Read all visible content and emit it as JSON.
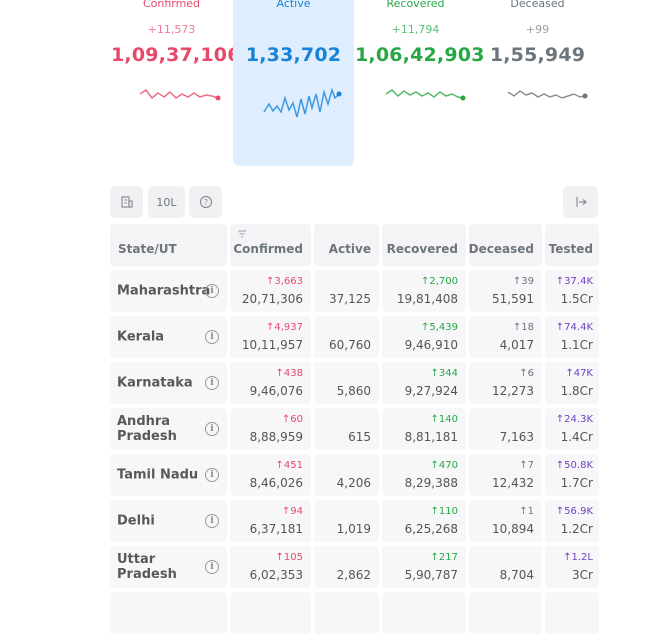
{
  "colors": {
    "confirmed": "#e8496a",
    "active": "#1683d8",
    "recovered": "#27a744",
    "deceased": "#6c757d",
    "tested": "#6f42c1"
  },
  "stats": {
    "confirmed": {
      "label": "Confirmed",
      "delta": "+11,573",
      "total": "1,09,37,106"
    },
    "active": {
      "label": "Active",
      "delta": "",
      "total": "1,33,702"
    },
    "recovered": {
      "label": "Recovered",
      "delta": "+11,794",
      "total": "1,06,42,903"
    },
    "deceased": {
      "label": "Deceased",
      "delta": "+99",
      "total": "1,55,949"
    }
  },
  "toolbar": {
    "building_icon": "building-icon",
    "per_lakh_label": "10L",
    "help_icon": "help-circle-icon",
    "expand_icon": "arrow-right-bar-icon"
  },
  "table": {
    "headers": {
      "state": "State/UT",
      "confirmed": "Confirmed",
      "active": "Active",
      "recovered": "Recovered",
      "deceased": "Deceased",
      "tested": "Tested"
    },
    "rows": [
      {
        "state": "Maharashtra",
        "c_delta": "↑3,663",
        "c": "20,71,306",
        "active": "37,125",
        "r_delta": "↑2,700",
        "r": "19,81,408",
        "d_delta": "↑39",
        "d": "51,591",
        "t_delta": "↑37.4K",
        "t": "1.5Cr"
      },
      {
        "state": "Kerala",
        "c_delta": "↑4,937",
        "c": "10,11,957",
        "active": "60,760",
        "r_delta": "↑5,439",
        "r": "9,46,910",
        "d_delta": "↑18",
        "d": "4,017",
        "t_delta": "↑74.4K",
        "t": "1.1Cr"
      },
      {
        "state": "Karnataka",
        "c_delta": "↑438",
        "c": "9,46,076",
        "active": "5,860",
        "r_delta": "↑344",
        "r": "9,27,924",
        "d_delta": "↑6",
        "d": "12,273",
        "t_delta": "↑47K",
        "t": "1.8Cr"
      },
      {
        "state": "Andhra Pradesh",
        "c_delta": "↑60",
        "c": "8,88,959",
        "active": "615",
        "r_delta": "↑140",
        "r": "8,81,181",
        "d_delta": "",
        "d": "7,163",
        "t_delta": "↑24.3K",
        "t": "1.4Cr"
      },
      {
        "state": "Tamil Nadu",
        "c_delta": "↑451",
        "c": "8,46,026",
        "active": "4,206",
        "r_delta": "↑470",
        "r": "8,29,388",
        "d_delta": "↑7",
        "d": "12,432",
        "t_delta": "↑50.8K",
        "t": "1.7Cr"
      },
      {
        "state": "Delhi",
        "c_delta": "↑94",
        "c": "6,37,181",
        "active": "1,019",
        "r_delta": "↑110",
        "r": "6,25,268",
        "d_delta": "↑1",
        "d": "10,894",
        "t_delta": "↑56.9K",
        "t": "1.2Cr"
      },
      {
        "state": "Uttar Pradesh",
        "c_delta": "↑105",
        "c": "6,02,353",
        "active": "2,862",
        "r_delta": "↑217",
        "r": "5,90,787",
        "d_delta": "",
        "d": "8,704",
        "t_delta": "↑1.2L",
        "t": "3Cr"
      }
    ]
  }
}
